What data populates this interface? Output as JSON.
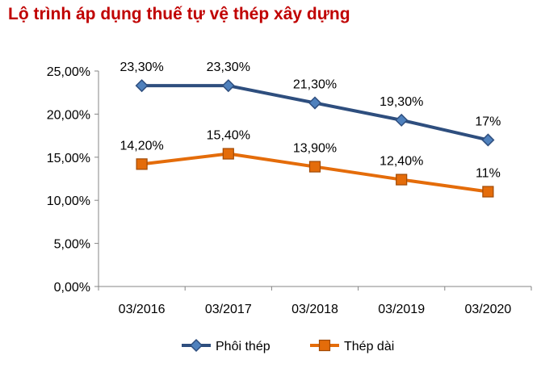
{
  "chart_data": {
    "type": "line",
    "title": "Lộ trình áp dụng thuế tự vệ thép xây dựng",
    "categories": [
      "03/2016",
      "03/2017",
      "03/2018",
      "03/2019",
      "03/2020"
    ],
    "ylim": [
      0,
      25
    ],
    "y_ticks": [
      {
        "value": 0,
        "label": "0,00%"
      },
      {
        "value": 5,
        "label": "5,00%"
      },
      {
        "value": 10,
        "label": "10,00%"
      },
      {
        "value": 15,
        "label": "15,00%"
      },
      {
        "value": 20,
        "label": "20,00%"
      },
      {
        "value": 25,
        "label": "25,00%"
      }
    ],
    "grid": false,
    "legend_position": "bottom",
    "series": [
      {
        "name": "Phôi thép",
        "color": "#2e4e7e",
        "marker": "diamond",
        "values": [
          23.3,
          23.3,
          21.3,
          19.3,
          17
        ],
        "labels": [
          "23,30%",
          "23,30%",
          "21,30%",
          "19,30%",
          "17%"
        ]
      },
      {
        "name": "Thép dài",
        "color": "#e46c0a",
        "marker": "square",
        "values": [
          14.2,
          15.4,
          13.9,
          12.4,
          11
        ],
        "labels": [
          "14,20%",
          "15,40%",
          "13,90%",
          "12,40%",
          "11%"
        ]
      }
    ]
  }
}
